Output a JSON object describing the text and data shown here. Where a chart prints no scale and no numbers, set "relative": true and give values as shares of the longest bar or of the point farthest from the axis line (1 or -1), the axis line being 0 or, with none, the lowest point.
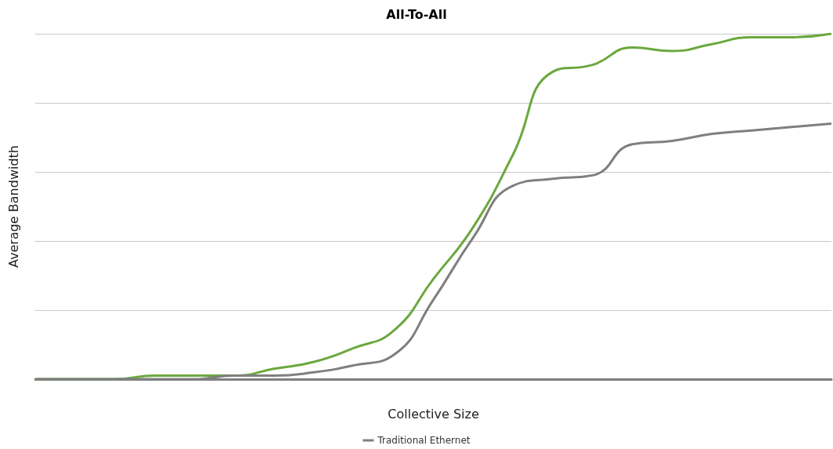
{
  "chart_data": {
    "type": "line",
    "title": "All-To-All",
    "xlabel": "Collective Size",
    "ylabel": "Average Bandwidth",
    "relative": true,
    "grid": "y",
    "legend": "bottom",
    "marker": "none",
    "categories": [
      null,
      null,
      null,
      null,
      null,
      null,
      null,
      null,
      null,
      null,
      null,
      null,
      null,
      null,
      null,
      null,
      null,
      null,
      null,
      null,
      null
    ],
    "series": [
      {
        "color": "#6aa83e",
        "values": [
          0,
          0,
          0,
          0.01,
          0.01,
          0.01,
          0.03,
          0.05,
          0.09,
          0.14,
          0.29,
          0.44,
          0.65,
          0.89,
          0.91,
          0.96,
          0.95,
          0.97,
          0.99,
          0.99,
          1
        ]
      },
      {
        "name": "Traditional Ethernet",
        "color": "#7f7f7f",
        "values": [
          0,
          0,
          0,
          0,
          0,
          0.01,
          0.01,
          0.02,
          0.04,
          0.07,
          0.23,
          0.41,
          0.56,
          0.58,
          0.59,
          0.68,
          0.69,
          0.71,
          0.72,
          0.73,
          0.74
        ]
      }
    ]
  }
}
